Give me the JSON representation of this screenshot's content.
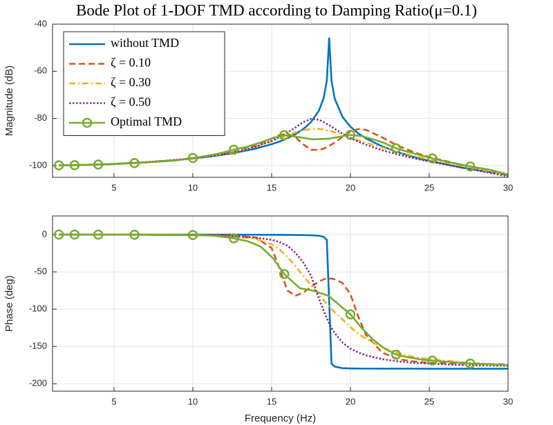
{
  "chart_data": [
    {
      "type": "line",
      "title": "Bode Plot of 1-DOF TMD according to Damping Ratio(μ=0.1)",
      "ylabel": "Magnitude (dB)",
      "xlim": [
        1.1,
        30
      ],
      "xticks": [
        5,
        10,
        15,
        20,
        25,
        30
      ],
      "ylim": [
        -105,
        -40
      ],
      "yticks": [
        -40,
        -60,
        -80,
        -100
      ],
      "grid": true,
      "legend": "upper left",
      "x": [
        1.5,
        3,
        5,
        7,
        9,
        11,
        12.5,
        14,
        15,
        15.5,
        16,
        16.5,
        17,
        17.5,
        18,
        18.3,
        18.5,
        18.65,
        18.8,
        19,
        19.5,
        20,
        20.5,
        21,
        22,
        23,
        24,
        25,
        27,
        30
      ],
      "series": [
        {
          "name": "without TMD",
          "color": "#0072BD",
          "dash": "solid",
          "values": [
            -99.94,
            -99.77,
            -99.35,
            -98.68,
            -97.7,
            -96.29,
            -94.82,
            -92.8,
            -90.96,
            -89.81,
            -88.43,
            -86.74,
            -84.56,
            -81.55,
            -76.71,
            -71.4,
            -64.1,
            -46,
            -64.1,
            -71.6,
            -79.4,
            -83.52,
            -86.37,
            -88.56,
            -91.85,
            -94.33,
            -96.34,
            -98.03,
            -100.8,
            -104.01
          ]
        },
        {
          "name": "ζ = 0.10",
          "color": "#D95319",
          "dash": "dashed",
          "values": [
            -99.93,
            -99.75,
            -99.3,
            -98.6,
            -97.6,
            -96.1,
            -94.4,
            -91.6,
            -88.5,
            -87.1,
            -86.6,
            -87.8,
            -91.0,
            -93.3,
            -93.4,
            -92.8,
            -92.2,
            -91.7,
            -91.1,
            -90.2,
            -87.8,
            -85.5,
            -84.5,
            -84.9,
            -88.0,
            -91.6,
            -94.3,
            -96.4,
            -99.6,
            -103.8
          ]
        },
        {
          "name": "ζ = 0.30",
          "color": "#EDB120",
          "dash": "dashdot",
          "values": [
            -99.93,
            -99.75,
            -99.3,
            -98.6,
            -97.6,
            -96.1,
            -94.5,
            -92.0,
            -89.8,
            -88.5,
            -87.2,
            -86.0,
            -85.0,
            -84.5,
            -84.5,
            -84.7,
            -85.0,
            -85.2,
            -85.5,
            -85.9,
            -87.0,
            -88.2,
            -89.3,
            -90.3,
            -92.3,
            -94.2,
            -95.9,
            -97.4,
            -100.1,
            -104.2
          ]
        },
        {
          "name": "ζ = 0.50",
          "color": "#7E2F8E",
          "dash": "dotted",
          "values": [
            -99.93,
            -99.75,
            -99.3,
            -98.6,
            -97.6,
            -96.1,
            -94.6,
            -92.0,
            -89.5,
            -87.9,
            -86.0,
            -83.9,
            -81.6,
            -80.2,
            -80.6,
            -81.5,
            -82.3,
            -82.9,
            -83.5,
            -84.4,
            -86.5,
            -88.3,
            -89.9,
            -91.2,
            -93.5,
            -95.3,
            -96.9,
            -98.3,
            -100.8,
            -104.6
          ]
        },
        {
          "name": "Optimal TMD",
          "color": "#77AC30",
          "dash": "solid",
          "marker": "o",
          "marker_every": 4,
          "x": [
            1.5,
            1.75,
            2,
            2.25,
            2.5,
            2.9,
            3.25,
            3.6,
            4,
            4.6,
            5.2,
            5.8,
            6.3,
            7.2,
            8.1,
            9.0,
            10,
            10.6,
            11.3,
            11.9,
            12.6,
            13.5,
            14.3,
            15.1,
            15.8,
            16.8,
            17.6,
            18.6,
            20,
            20.7,
            21.4,
            22.1,
            22.9,
            23.5,
            24.1,
            24.6,
            25.2,
            25.8,
            26.4,
            27,
            27.6,
            28.8,
            30
          ],
          "values": [
            -99.93,
            -99.91,
            -99.89,
            -99.87,
            -99.84,
            -99.79,
            -99.73,
            -99.67,
            -99.6,
            -99.46,
            -99.3,
            -99.12,
            -98.96,
            -98.63,
            -98.25,
            -97.8,
            -96.8,
            -96.2,
            -95.4,
            -94.5,
            -93.3,
            -91.9,
            -90.2,
            -88.3,
            -87.1,
            -88.0,
            -88.9,
            -88.6,
            -87.0,
            -87.5,
            -88.8,
            -90.3,
            -92.7,
            -93.9,
            -95.0,
            -95.9,
            -97.0,
            -97.9,
            -98.8,
            -99.6,
            -100.4,
            -101.7,
            -103.8
          ]
        }
      ]
    },
    {
      "type": "line",
      "xlabel": "Frequency (Hz)",
      "ylabel": "Phase (deg)",
      "xlim": [
        1.1,
        30
      ],
      "xticks": [
        5,
        10,
        15,
        20,
        25,
        30
      ],
      "ylim": [
        -210,
        25
      ],
      "yticks": [
        0,
        -50,
        -100,
        -150,
        -200
      ],
      "grid": true,
      "x": [
        1.5,
        3,
        5,
        7,
        9,
        11,
        12.5,
        14,
        15,
        15.5,
        16,
        16.5,
        17,
        17.5,
        18,
        18.3,
        18.5,
        18.65,
        18.8,
        19,
        19.5,
        20,
        20.5,
        21,
        22,
        23,
        24,
        25,
        27,
        30
      ],
      "series": [
        {
          "color": "#0072BD",
          "dash": "solid",
          "values": [
            0,
            0,
            0,
            0,
            0,
            0,
            0,
            -0.2,
            -0.3,
            -0.3,
            -0.4,
            -0.5,
            -0.6,
            -0.9,
            -1.6,
            -3,
            -7,
            -90,
            -173,
            -177,
            -179.2,
            -179.5,
            -179.6,
            -179.7,
            -179.8,
            -179.8,
            -179.8,
            -179.9,
            -179.9,
            -179.9
          ]
        },
        {
          "color": "#D95319",
          "dash": "dashed",
          "values": [
            0,
            0,
            -0.1,
            -0.2,
            -0.3,
            -0.6,
            -1.2,
            -4,
            -18,
            -45,
            -75,
            -82,
            -78,
            -70,
            -63,
            -60,
            -59,
            -59,
            -59,
            -60,
            -65,
            -80,
            -110,
            -135,
            -158,
            -167,
            -170,
            -172,
            -173,
            -174
          ]
        },
        {
          "color": "#EDB120",
          "dash": "dashdot",
          "values": [
            0,
            0,
            -0.1,
            -0.3,
            -0.6,
            -1.2,
            -2.5,
            -6,
            -13,
            -20,
            -30,
            -42,
            -55,
            -68,
            -81,
            -88,
            -93,
            -96,
            -100,
            -104,
            -114,
            -124,
            -133,
            -140,
            -151,
            -159,
            -164,
            -167,
            -171,
            -175
          ]
        },
        {
          "color": "#7E2F8E",
          "dash": "dotted",
          "values": [
            0,
            0,
            -0.1,
            -0.3,
            -0.5,
            -1,
            -2,
            -4,
            -7,
            -10,
            -15,
            -24,
            -37,
            -55,
            -86,
            -102,
            -112,
            -119,
            -125,
            -132,
            -145,
            -153,
            -158,
            -162,
            -167,
            -170,
            -172,
            -173,
            -175,
            -176
          ]
        },
        {
          "color": "#77AC30",
          "dash": "solid",
          "marker": "o",
          "marker_every": 4,
          "x": [
            1.5,
            1.75,
            2,
            2.25,
            2.5,
            2.9,
            3.25,
            3.6,
            4,
            4.6,
            5.2,
            5.8,
            6.3,
            7.2,
            8.1,
            9.0,
            10,
            10.6,
            11.3,
            11.9,
            12.6,
            13.5,
            14.3,
            15.1,
            15.8,
            16.8,
            17.6,
            18.6,
            20,
            20.7,
            21.4,
            22.1,
            22.9,
            23.5,
            24.1,
            24.6,
            25.2,
            25.8,
            26.4,
            27,
            27.6,
            28.8,
            30
          ],
          "values": [
            0,
            0,
            0,
            0,
            0,
            0,
            0,
            0,
            0,
            -0.1,
            -0.1,
            -0.2,
            -0.2,
            -0.3,
            -0.4,
            -0.5,
            -0.6,
            -0.8,
            -1.5,
            -3,
            -5,
            -9,
            -16,
            -32,
            -53,
            -72,
            -75,
            -82,
            -107,
            -125,
            -140,
            -152,
            -161,
            -164,
            -166,
            -168,
            -169,
            -170,
            -171,
            -172,
            -173,
            -174,
            -175
          ]
        }
      ]
    }
  ]
}
